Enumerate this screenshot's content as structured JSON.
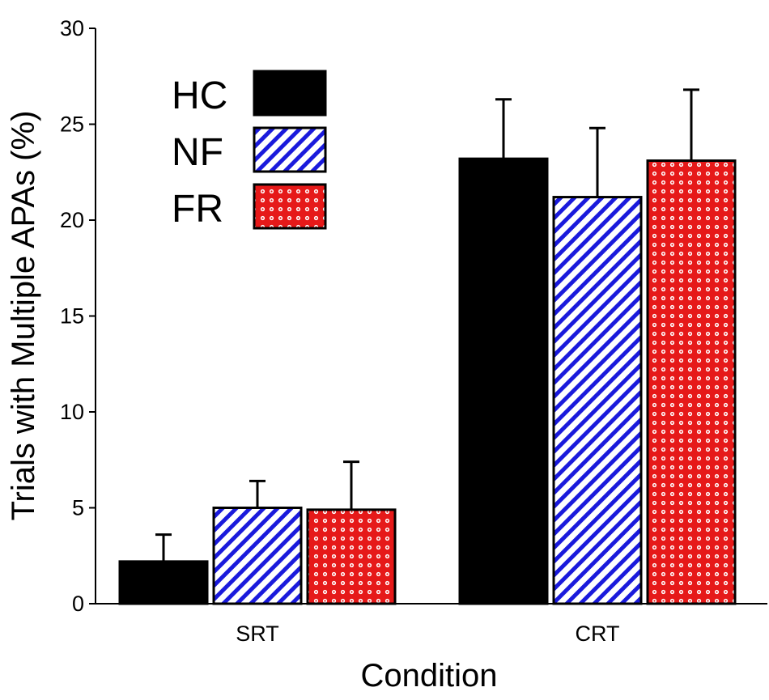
{
  "chart_data": {
    "type": "bar",
    "title": "",
    "xlabel": "Condition",
    "ylabel": "Trials with Multiple APAs (%)",
    "categories": [
      "SRT",
      "CRT"
    ],
    "ylim": [
      0,
      30
    ],
    "yticks": [
      0,
      5,
      10,
      15,
      20,
      25,
      30
    ],
    "legend_position": "top-left",
    "series": [
      {
        "name": "HC",
        "values": [
          2.2,
          23.2
        ],
        "errors": [
          1.4,
          3.1
        ],
        "pattern": "solid",
        "color": "#000000"
      },
      {
        "name": "NF",
        "values": [
          5.0,
          21.2
        ],
        "errors": [
          1.4,
          3.6
        ],
        "pattern": "diagonal-stripes",
        "color": "#1a1adc"
      },
      {
        "name": "FR",
        "values": [
          4.9,
          23.1
        ],
        "errors": [
          2.5,
          3.7
        ],
        "pattern": "dots",
        "color": "#e61919"
      }
    ]
  }
}
